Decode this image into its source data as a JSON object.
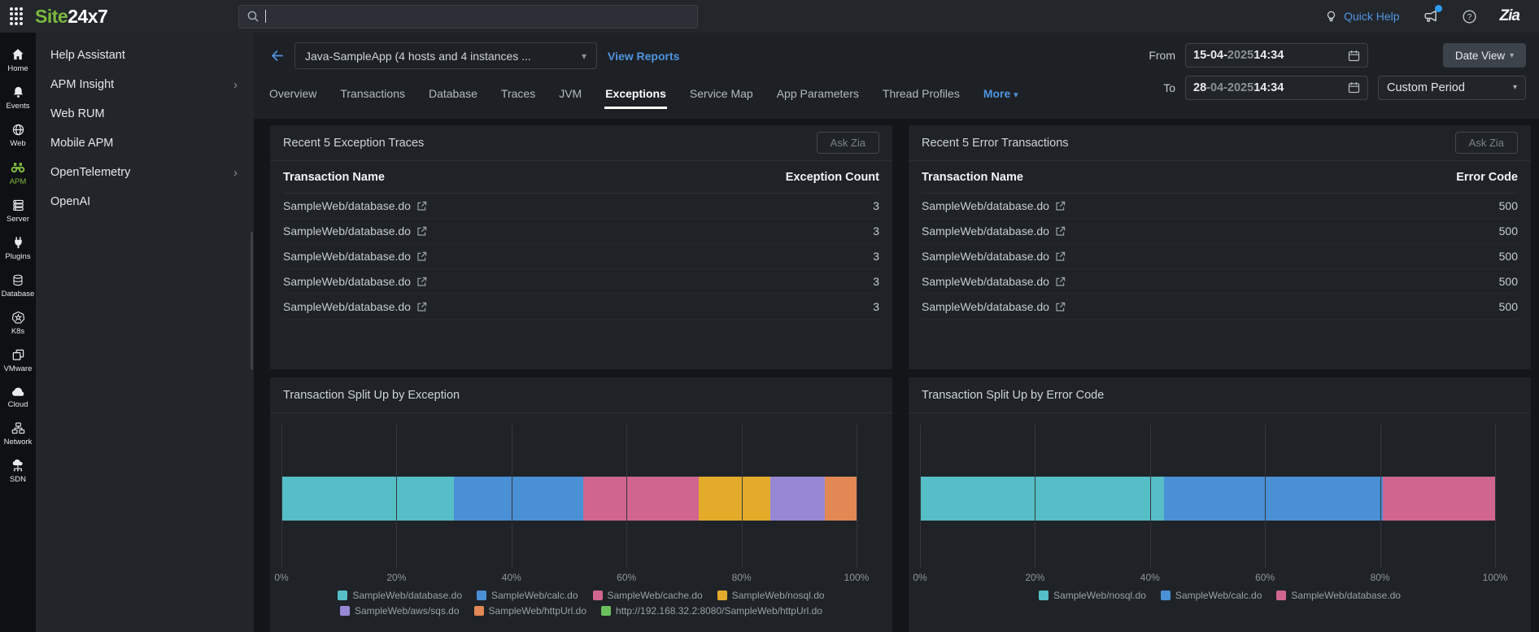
{
  "header": {
    "logo_site": "Site",
    "logo_rest": "24x7",
    "search_value": "",
    "quick_help_label": "Quick Help",
    "zia_label": "Zia"
  },
  "icon_rail": {
    "active": "APM",
    "items": [
      "Home",
      "Events",
      "Web",
      "APM",
      "Server",
      "Plugins",
      "Database",
      "K8s",
      "VMware",
      "Cloud",
      "Network",
      "SDN"
    ]
  },
  "menu": {
    "items": [
      {
        "label": "Help Assistant",
        "chevron": false
      },
      {
        "label": "APM Insight",
        "chevron": true
      },
      {
        "label": "Web RUM",
        "chevron": false
      },
      {
        "label": "Mobile APM",
        "chevron": false
      },
      {
        "label": "OpenTelemetry",
        "chevron": true
      },
      {
        "label": "OpenAI",
        "chevron": false
      }
    ]
  },
  "toolbar": {
    "app_selector": "Java-SampleApp (4 hosts and 4 instances ...",
    "view_reports": "View Reports",
    "from_label": "From",
    "to_label": "To",
    "from_value": {
      "b1": "15-04-",
      "dim": "2025",
      "b2": " 14:34"
    },
    "to_value": {
      "b1": "28",
      "dim": "-04-2025",
      "b2": " 14:34"
    },
    "date_view": "Date View",
    "custom_period": "Custom Period"
  },
  "tabs": {
    "items": [
      "Overview",
      "Transactions",
      "Database",
      "Traces",
      "JVM",
      "Exceptions",
      "Service Map",
      "App Parameters",
      "Thread Profiles"
    ],
    "active": "Exceptions",
    "more": "More"
  },
  "panels": {
    "exception_traces": {
      "title": "Recent 5 Exception Traces",
      "ask_zia": "Ask Zia",
      "col_name": "Transaction Name",
      "col_value": "Exception Count",
      "rows": [
        {
          "name": "SampleWeb/database.do",
          "value": "3"
        },
        {
          "name": "SampleWeb/database.do",
          "value": "3"
        },
        {
          "name": "SampleWeb/database.do",
          "value": "3"
        },
        {
          "name": "SampleWeb/database.do",
          "value": "3"
        },
        {
          "name": "SampleWeb/database.do",
          "value": "3"
        }
      ]
    },
    "error_transactions": {
      "title": "Recent 5 Error Transactions",
      "ask_zia": "Ask Zia",
      "col_name": "Transaction Name",
      "col_value": "Error Code",
      "rows": [
        {
          "name": "SampleWeb/database.do",
          "value": "500"
        },
        {
          "name": "SampleWeb/database.do",
          "value": "500"
        },
        {
          "name": "SampleWeb/database.do",
          "value": "500"
        },
        {
          "name": "SampleWeb/database.do",
          "value": "500"
        },
        {
          "name": "SampleWeb/database.do",
          "value": "500"
        }
      ]
    }
  },
  "chart_data": [
    {
      "type": "bar",
      "subtype": "horizontal-stacked-percent",
      "title": "Transaction Split Up by Exception",
      "x_ticks": [
        "0%",
        "20%",
        "40%",
        "60%",
        "80%",
        "100%"
      ],
      "xlim": [
        0,
        100
      ],
      "grid": true,
      "legend_position": "bottom",
      "series": [
        {
          "name": "SampleWeb/database.do",
          "value": 30,
          "color": "#56bec6"
        },
        {
          "name": "SampleWeb/calc.do",
          "value": 22.5,
          "color": "#4a90d5"
        },
        {
          "name": "SampleWeb/cache.do",
          "value": 20,
          "color": "#d06590"
        },
        {
          "name": "SampleWeb/nosql.do",
          "value": 12.5,
          "color": "#e4ab2b"
        },
        {
          "name": "SampleWeb/aws/sqs.do",
          "value": 9.5,
          "color": "#9788d6"
        },
        {
          "name": "SampleWeb/httpUrl.do",
          "value": 5.5,
          "color": "#e28854"
        },
        {
          "name": "http://192.168.32.2:8080/SampleWeb/httpUrl.do",
          "value": 0,
          "color": "#6cbf5c",
          "muted": true
        }
      ]
    },
    {
      "type": "bar",
      "subtype": "horizontal-stacked-percent",
      "title": "Transaction Split Up by Error Code",
      "x_ticks": [
        "0%",
        "20%",
        "40%",
        "60%",
        "80%",
        "100%"
      ],
      "xlim": [
        0,
        100
      ],
      "grid": true,
      "legend_position": "bottom",
      "series": [
        {
          "name": "SampleWeb/nosql.do",
          "value": 42.5,
          "color": "#56bec6"
        },
        {
          "name": "SampleWeb/calc.do",
          "value": 38,
          "color": "#4a90d5"
        },
        {
          "name": "SampleWeb/database.do",
          "value": 19.5,
          "color": "#d06590"
        }
      ]
    }
  ]
}
